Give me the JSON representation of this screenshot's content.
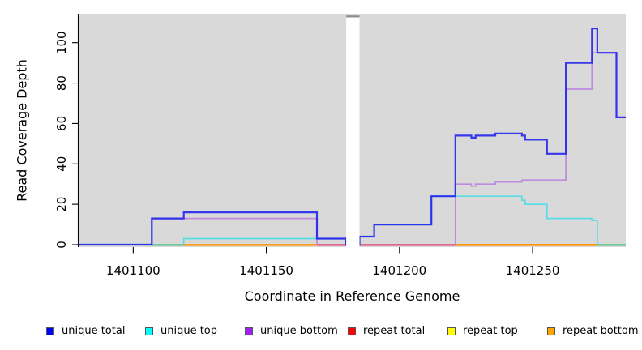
{
  "figure": {
    "xlabel": "Coordinate in Reference Genome",
    "ylabel": "Read Coverage Depth"
  },
  "chart_data": {
    "type": "line",
    "subtype": "step-after-coverage-plot",
    "title": "",
    "xlabel": "Coordinate in Reference Genome",
    "ylabel": "Read Coverage Depth",
    "xlim": [
      1401079.5,
      1401285
    ],
    "ylim": [
      0,
      114
    ],
    "x_ticks": [
      "1401100",
      "1401150",
      "1401200",
      "1401250"
    ],
    "y_ticks": [
      "0",
      "20",
      "40",
      "60",
      "80",
      "100"
    ],
    "background": "#d9d9d9",
    "grid": "off",
    "legend_position": "bottom-row",
    "gap_region": {
      "from": 1401180,
      "to": 1401185
    },
    "series": [
      {
        "name": "unique total",
        "color": "#0000ff",
        "line_color": "#2424ec",
        "points": [
          [
            1401079.5,
            0
          ],
          [
            1401107,
            13
          ],
          [
            1401119,
            16
          ],
          [
            1401169,
            3
          ],
          [
            1401180,
            0
          ],
          [
            1401185,
            4
          ],
          [
            1401190.5,
            10
          ],
          [
            1401212,
            24
          ],
          [
            1401221,
            54
          ],
          [
            1401227,
            53
          ],
          [
            1401228.6,
            54
          ],
          [
            1401236,
            55
          ],
          [
            1401246,
            54
          ],
          [
            1401247.2,
            52
          ],
          [
            1401255.4,
            45
          ],
          [
            1401262.5,
            90
          ],
          [
            1401272.3,
            107
          ],
          [
            1401274.3,
            95
          ],
          [
            1401281.5,
            63
          ]
        ]
      },
      {
        "name": "unique top",
        "color": "#00ffff",
        "line_color": "#58dde6",
        "points": [
          [
            1401079.5,
            0
          ],
          [
            1401119,
            3
          ],
          [
            1401180,
            0
          ],
          [
            1401185,
            4
          ],
          [
            1401190.5,
            10
          ],
          [
            1401212,
            24
          ],
          [
            1401246,
            22
          ],
          [
            1401247.2,
            20
          ],
          [
            1401255.4,
            13
          ],
          [
            1401272.3,
            12
          ],
          [
            1401274.3,
            0
          ]
        ]
      },
      {
        "name": "unique bottom",
        "color": "#a020f0",
        "line_color": "#bd8ade",
        "points": [
          [
            1401079.5,
            0
          ],
          [
            1401107,
            13
          ],
          [
            1401169,
            0
          ],
          [
            1401221,
            30
          ],
          [
            1401227,
            29
          ],
          [
            1401228.6,
            30
          ],
          [
            1401236,
            31
          ],
          [
            1401246,
            32
          ],
          [
            1401262.5,
            77
          ],
          [
            1401272.3,
            95
          ],
          [
            1401281.5,
            63
          ]
        ]
      },
      {
        "name": "repeat total",
        "color": "#ff0000",
        "line_color": "#e04444",
        "points": [
          [
            1401079.5,
            0
          ]
        ]
      },
      {
        "name": "repeat top",
        "color": "#ffff00",
        "line_color": "#f2e23a",
        "points": [
          [
            1401079.5,
            0
          ]
        ]
      },
      {
        "name": "repeat bottom",
        "color": "#ffa500",
        "line_color": "#ff9d1e",
        "points": [
          [
            1401079.5,
            0
          ]
        ]
      }
    ],
    "draw_order": [
      4,
      3,
      5,
      2,
      1
    ],
    "baseline_overlays": [
      {
        "from": 1401107,
        "to": 1401119,
        "color": "#6cc996"
      },
      {
        "from": 1401119,
        "to": 1401169,
        "color": "#ff9d1e"
      },
      {
        "from": 1401169,
        "to": 1401221,
        "color": "#e0608a"
      },
      {
        "from": 1401221,
        "to": 1401274.3,
        "color": "#ff9400"
      },
      {
        "from": 1401274.3,
        "to": 1401285,
        "color": "#6cc996"
      }
    ]
  },
  "legend": {
    "items": [
      {
        "label": "unique total",
        "color": "#0000ff"
      },
      {
        "label": "unique top",
        "color": "#00ffff"
      },
      {
        "label": "unique bottom",
        "color": "#a020f0"
      },
      {
        "label": "repeat total",
        "color": "#ff0000"
      },
      {
        "label": "repeat top",
        "color": "#ffff00"
      },
      {
        "label": "repeat bottom",
        "color": "#ffa500"
      }
    ]
  }
}
